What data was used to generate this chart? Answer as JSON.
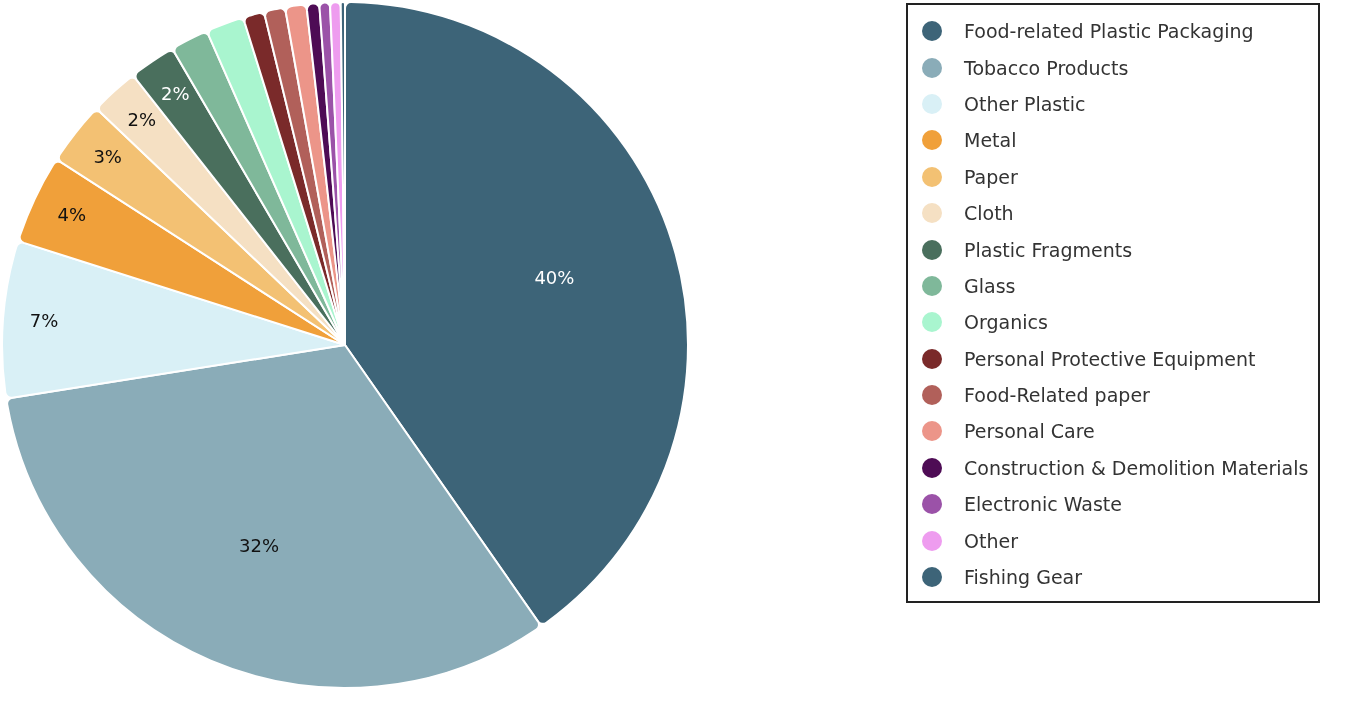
{
  "chart_data": {
    "type": "pie",
    "legend": "right",
    "categories": [
      "Food-related Plastic Packaging",
      "Tobacco Products",
      "Other Plastic",
      "Metal",
      "Paper",
      "Cloth",
      "Plastic Fragments",
      "Glass",
      "Organics",
      "Personal Protective Equipment",
      "Food-Related paper",
      "Personal Care",
      "Construction & Demolition Materials",
      "Electronic Waste",
      "Other",
      "Fishing Gear"
    ],
    "values": [
      40.3,
      32.2,
      7.4,
      4.2,
      3.0,
      2.3,
      2.2,
      1.8,
      1.8,
      1.0,
      1.0,
      1.0,
      0.6,
      0.5,
      0.5,
      0.2
    ],
    "value_labels": [
      "40%",
      "32%",
      "7%",
      "4%",
      "3%",
      "2%",
      "2%",
      null,
      null,
      null,
      null,
      null,
      null,
      null,
      null,
      null
    ],
    "colors": [
      "#3d6478",
      "#8aacb8",
      "#d9f0f6",
      "#f0a03a",
      "#f3c173",
      "#f5e0c3",
      "#4a6f5d",
      "#7fb89a",
      "#a9f5cf",
      "#7a2a2a",
      "#b1605a",
      "#ec9589",
      "#4e0c55",
      "#9b52a8",
      "#ee9cef",
      "#3d6478"
    ]
  }
}
